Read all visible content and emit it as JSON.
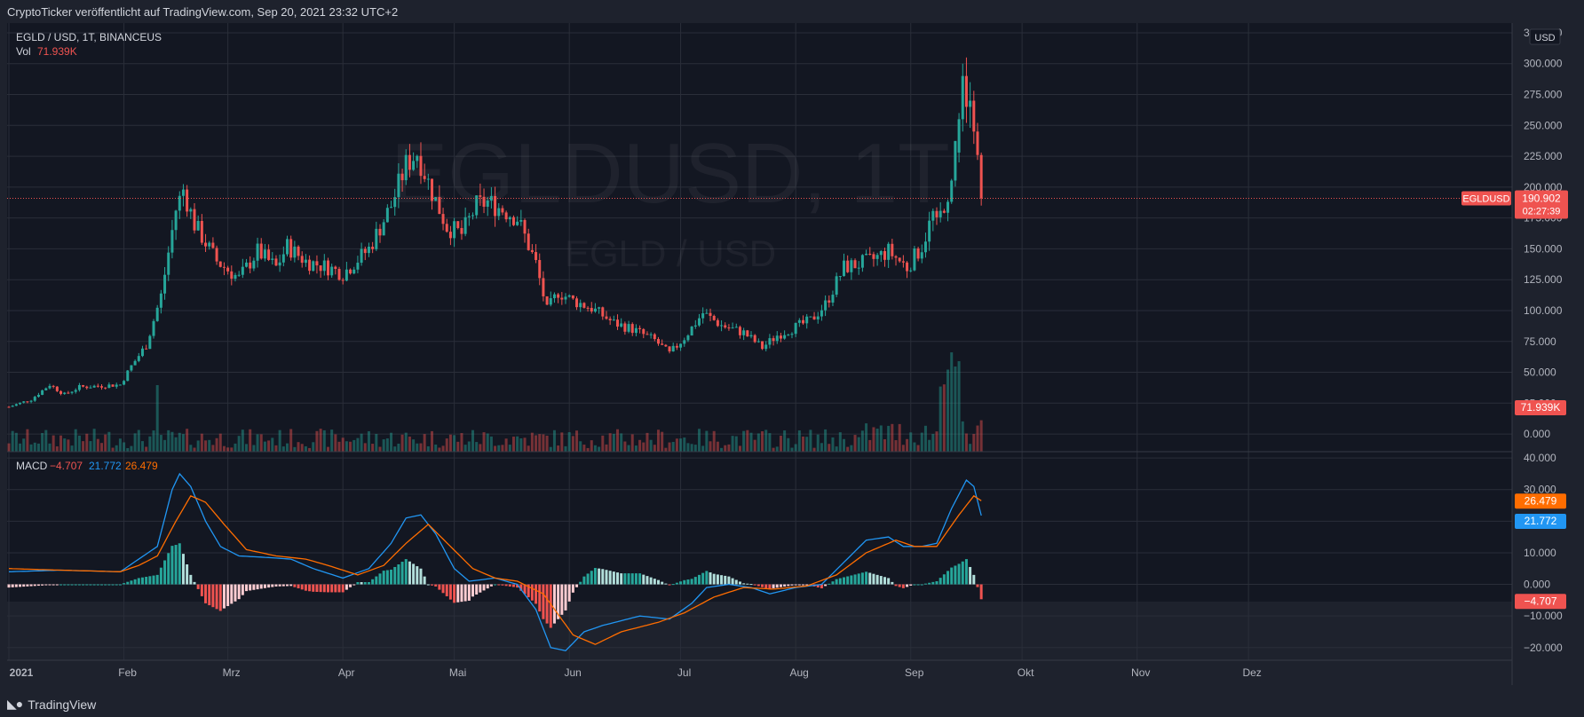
{
  "header": {
    "publisher_line": "CryptoTicker veröffentlicht auf TradingView.com, Sep 20, 2021 23:32 UTC+2"
  },
  "footer": {
    "brand": "TradingView",
    "logo_icon": "tradingview-logo-icon"
  },
  "watermark": {
    "symbol_line": "EGLDUSD, 1T",
    "pair_line": "EGLD / USD"
  },
  "legend": {
    "symbol_info": "EGLD / USD, 1T, BINANCEUS",
    "vol_label": "Vol",
    "vol_value": "71.939K",
    "macd_label": "MACD",
    "macd_hist_value": "−4.707",
    "macd_line_value": "21.772",
    "macd_signal_value": "26.479"
  },
  "price_axis": {
    "currency": "USD",
    "ticks": [
      "325.000",
      "300.000",
      "275.000",
      "250.000",
      "225.000",
      "200.000",
      "175.000",
      "150.000",
      "125.000",
      "100.000",
      "75.000",
      "50.000",
      "25.000",
      "0.000"
    ],
    "ticks_values": [
      325,
      300,
      275,
      250,
      225,
      200,
      175,
      150,
      125,
      100,
      75,
      50,
      25,
      0
    ],
    "last_price_symbol": "EGLDUSD",
    "last_price": "190.902",
    "countdown": "02:27:39",
    "last_price_value": 190.902,
    "vol_badge": "71.939K"
  },
  "macd_axis": {
    "ticks": [
      "40.000",
      "30.000",
      "20.000",
      "10.000",
      "0.000",
      "−10.000",
      "−20.000"
    ],
    "ticks_values": [
      40,
      30,
      20,
      10,
      0,
      -10,
      -20
    ],
    "signal_badge": "26.479",
    "macd_badge": "21.772",
    "hist_badge": "−4.707"
  },
  "time_axis": {
    "labels": [
      "2021",
      "Feb",
      "Mrz",
      "Apr",
      "Mai",
      "Jun",
      "Jul",
      "Aug",
      "Sep",
      "Okt",
      "Nov",
      "Dez"
    ],
    "label_days": [
      0,
      31,
      59,
      90,
      120,
      151,
      181,
      212,
      243,
      273,
      304,
      334
    ]
  },
  "colors": {
    "bg": "#131722",
    "frame": "#1e222d",
    "grid": "#2a2e39",
    "up": "#26a69a",
    "down": "#ef5350",
    "text": "#b2b5be",
    "macd": "#2196f3",
    "signal": "#ff6d00",
    "hist_light": "#b2dfdb",
    "hist_pink": "#ffcdd2"
  },
  "chart_data": {
    "type": "candlestick",
    "interval": "1 day",
    "x_start": "2021-01-01",
    "x_end": "2021-12-31",
    "price_range": [
      -10,
      330
    ],
    "macd_range": [
      -24,
      42
    ],
    "price_keypoints": [
      [
        "2021-01-01",
        22
      ],
      [
        "2021-01-07",
        28
      ],
      [
        "2021-01-12",
        40
      ],
      [
        "2021-01-16",
        32
      ],
      [
        "2021-01-20",
        38
      ],
      [
        "2021-01-31",
        40
      ],
      [
        "2021-02-03",
        55
      ],
      [
        "2021-02-07",
        72
      ],
      [
        "2021-02-11",
        112
      ],
      [
        "2021-02-15",
        182
      ],
      [
        "2021-02-17",
        198
      ],
      [
        "2021-02-20",
        170
      ],
      [
        "2021-02-26",
        140
      ],
      [
        "2021-03-04",
        126
      ],
      [
        "2021-03-09",
        148
      ],
      [
        "2021-03-14",
        135
      ],
      [
        "2021-03-17",
        152
      ],
      [
        "2021-03-22",
        140
      ],
      [
        "2021-03-28",
        135
      ],
      [
        "2021-04-01",
        130
      ],
      [
        "2021-04-08",
        150
      ],
      [
        "2021-04-14",
        185
      ],
      [
        "2021-04-18",
        218
      ],
      [
        "2021-04-21",
        228
      ],
      [
        "2021-04-25",
        196
      ],
      [
        "2021-04-29",
        168
      ],
      [
        "2021-05-03",
        162
      ],
      [
        "2021-05-07",
        185
      ],
      [
        "2021-05-10",
        188
      ],
      [
        "2021-05-14",
        182
      ],
      [
        "2021-05-18",
        175
      ],
      [
        "2021-05-23",
        138
      ],
      [
        "2021-05-26",
        100
      ],
      [
        "2021-05-29",
        115
      ],
      [
        "2021-06-02",
        108
      ],
      [
        "2021-06-07",
        102
      ],
      [
        "2021-06-13",
        90
      ],
      [
        "2021-06-18",
        85
      ],
      [
        "2021-06-24",
        76
      ],
      [
        "2021-06-28",
        65
      ],
      [
        "2021-07-02",
        78
      ],
      [
        "2021-07-07",
        98
      ],
      [
        "2021-07-12",
        88
      ],
      [
        "2021-07-18",
        82
      ],
      [
        "2021-07-23",
        70
      ],
      [
        "2021-07-27",
        80
      ],
      [
        "2021-08-02",
        88
      ],
      [
        "2021-08-05",
        92
      ],
      [
        "2021-08-09",
        105
      ],
      [
        "2021-08-14",
        135
      ],
      [
        "2021-08-21",
        140
      ],
      [
        "2021-08-26",
        148
      ],
      [
        "2021-08-31",
        135
      ],
      [
        "2021-09-04",
        152
      ],
      [
        "2021-09-07",
        178
      ],
      [
        "2021-09-08",
        168
      ],
      [
        "2021-09-12",
        205
      ],
      [
        "2021-09-14",
        262
      ],
      [
        "2021-09-17",
        280
      ],
      [
        "2021-09-18",
        255
      ],
      [
        "2021-09-19",
        225
      ],
      [
        "2021-09-20",
        190.902
      ]
    ],
    "candles": [
      {
        "date": "2021-09-14",
        "open": 228,
        "high": 260,
        "low": 220,
        "close": 255
      },
      {
        "date": "2021-09-15",
        "open": 255,
        "high": 300,
        "low": 245,
        "close": 290
      },
      {
        "date": "2021-09-16",
        "open": 290,
        "high": 305,
        "low": 252,
        "close": 265
      },
      {
        "date": "2021-09-17",
        "open": 265,
        "high": 285,
        "low": 248,
        "close": 270
      },
      {
        "date": "2021-09-18",
        "open": 270,
        "high": 278,
        "low": 235,
        "close": 245
      },
      {
        "date": "2021-09-19",
        "open": 245,
        "high": 252,
        "low": 222,
        "close": 226
      },
      {
        "date": "2021-09-20",
        "open": 226,
        "high": 228,
        "low": 185,
        "close": 190.902
      }
    ],
    "volume": {
      "last": "71.939K",
      "peak_date": "2021-09-13"
    },
    "macd": {
      "fast": 12,
      "slow": 26,
      "signal": 9,
      "last_macd": 21.772,
      "last_signal": 26.479,
      "last_hist": -4.707,
      "macd_keypoints": [
        [
          "2021-01-01",
          4
        ],
        [
          "2021-01-15",
          4.5
        ],
        [
          "2021-01-31",
          4
        ],
        [
          "2021-02-05",
          8
        ],
        [
          "2021-02-10",
          12
        ],
        [
          "2021-02-14",
          30
        ],
        [
          "2021-02-16",
          35
        ],
        [
          "2021-02-19",
          31
        ],
        [
          "2021-02-23",
          20
        ],
        [
          "2021-02-27",
          12
        ],
        [
          "2021-03-04",
          9
        ],
        [
          "2021-03-12",
          8.5
        ],
        [
          "2021-03-18",
          8
        ],
        [
          "2021-03-24",
          5
        ],
        [
          "2021-04-01",
          2
        ],
        [
          "2021-04-08",
          5
        ],
        [
          "2021-04-14",
          13
        ],
        [
          "2021-04-18",
          21
        ],
        [
          "2021-04-22",
          22
        ],
        [
          "2021-04-26",
          16
        ],
        [
          "2021-05-01",
          5
        ],
        [
          "2021-05-05",
          1
        ],
        [
          "2021-05-12",
          2
        ],
        [
          "2021-05-18",
          0
        ],
        [
          "2021-05-23",
          -8
        ],
        [
          "2021-05-27",
          -20
        ],
        [
          "2021-05-31",
          -21
        ],
        [
          "2021-06-05",
          -15
        ],
        [
          "2021-06-10",
          -13
        ],
        [
          "2021-06-20",
          -10
        ],
        [
          "2021-06-28",
          -11
        ],
        [
          "2021-07-04",
          -6
        ],
        [
          "2021-07-08",
          -1
        ],
        [
          "2021-07-14",
          0
        ],
        [
          "2021-07-20",
          -1
        ],
        [
          "2021-07-25",
          -3
        ],
        [
          "2021-08-01",
          -1
        ],
        [
          "2021-08-08",
          0
        ],
        [
          "2021-08-14",
          7
        ],
        [
          "2021-08-20",
          14
        ],
        [
          "2021-08-26",
          15
        ],
        [
          "2021-08-30",
          12
        ],
        [
          "2021-09-04",
          12
        ],
        [
          "2021-09-08",
          13
        ],
        [
          "2021-09-12",
          24
        ],
        [
          "2021-09-16",
          33
        ],
        [
          "2021-09-18",
          31
        ],
        [
          "2021-09-20",
          21.772
        ]
      ],
      "signal_keypoints": [
        [
          "2021-01-01",
          5
        ],
        [
          "2021-01-15",
          4.5
        ],
        [
          "2021-01-31",
          4
        ],
        [
          "2021-02-05",
          6
        ],
        [
          "2021-02-10",
          9
        ],
        [
          "2021-02-15",
          20
        ],
        [
          "2021-02-19",
          28
        ],
        [
          "2021-02-23",
          26
        ],
        [
          "2021-02-28",
          19
        ],
        [
          "2021-03-06",
          11
        ],
        [
          "2021-03-14",
          9
        ],
        [
          "2021-03-22",
          8
        ],
        [
          "2021-03-28",
          6
        ],
        [
          "2021-04-05",
          3
        ],
        [
          "2021-04-12",
          6
        ],
        [
          "2021-04-18",
          13
        ],
        [
          "2021-04-24",
          19
        ],
        [
          "2021-04-30",
          12
        ],
        [
          "2021-05-06",
          5
        ],
        [
          "2021-05-12",
          2
        ],
        [
          "2021-05-18",
          1
        ],
        [
          "2021-05-25",
          -3
        ],
        [
          "2021-06-02",
          -16
        ],
        [
          "2021-06-08",
          -19
        ],
        [
          "2021-06-15",
          -15
        ],
        [
          "2021-06-25",
          -12
        ],
        [
          "2021-07-02",
          -9
        ],
        [
          "2021-07-10",
          -4
        ],
        [
          "2021-07-18",
          -1
        ],
        [
          "2021-07-26",
          -1.5
        ],
        [
          "2021-08-04",
          -0.5
        ],
        [
          "2021-08-12",
          3
        ],
        [
          "2021-08-20",
          10
        ],
        [
          "2021-08-28",
          14
        ],
        [
          "2021-09-02",
          12
        ],
        [
          "2021-09-08",
          12
        ],
        [
          "2021-09-14",
          22
        ],
        [
          "2021-09-18",
          28
        ],
        [
          "2021-09-20",
          26.479
        ]
      ]
    }
  }
}
